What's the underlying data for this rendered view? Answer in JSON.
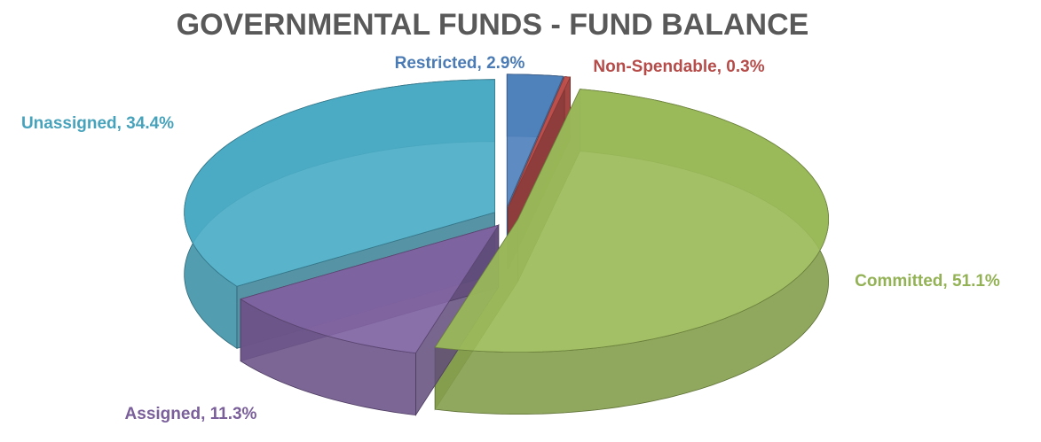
{
  "chart_data": {
    "type": "pie3d",
    "title": "GOVERNMENTAL FUNDS - FUND BALANCE",
    "values": [
      2.9,
      0.3,
      51.1,
      11.3,
      34.4
    ],
    "value_labels": [
      "Restricted, 2.9%",
      "Non-Spendable, 0.3%",
      "Committed, 51.1%",
      "Assigned, 11.3%",
      "Unassigned, 34.4%"
    ],
    "colors": [
      "#4f81bd",
      "#c0504d",
      "#9bbb59",
      "#8064a2",
      "#4bacc6"
    ]
  }
}
